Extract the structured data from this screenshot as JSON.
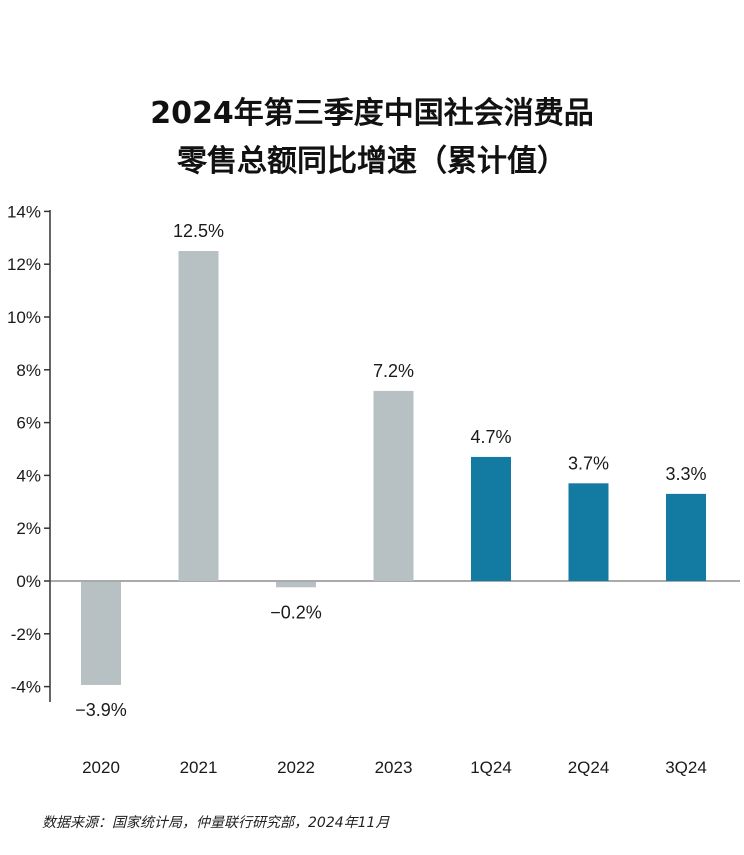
{
  "chart_data": {
    "type": "bar",
    "title_line_1": "2024年第三季度中国社会消费品",
    "title_line_2": "零售总额同比增速（累计值）",
    "categories": [
      "2020",
      "2021",
      "2022",
      "2023",
      "1Q24",
      "2Q24",
      "3Q24"
    ],
    "values": [
      -3.9,
      12.5,
      -0.2,
      7.2,
      4.7,
      3.7,
      3.3
    ],
    "data_labels": [
      "−3.9%",
      "12.5%",
      "−0.2%",
      "7.2%",
      "4.7%",
      "3.7%",
      "3.3%"
    ],
    "y_ticks": [
      "-4%",
      "-2%",
      "0%",
      "2%",
      "4%",
      "6%",
      "8%",
      "10%",
      "12%",
      "14%"
    ],
    "y_tick_values": [
      -4,
      -2,
      0,
      2,
      4,
      6,
      8,
      10,
      12,
      14
    ],
    "ylim": [
      -4.5,
      14
    ],
    "grid": false,
    "colors": {
      "annual": "#b7c0c2",
      "quarterly": "#137aa1"
    },
    "bar_color_keys": [
      "annual",
      "annual",
      "annual",
      "annual",
      "quarterly",
      "quarterly",
      "quarterly"
    ]
  },
  "source": "数据来源：国家统计局，仲量联行研究部，2024年11月"
}
